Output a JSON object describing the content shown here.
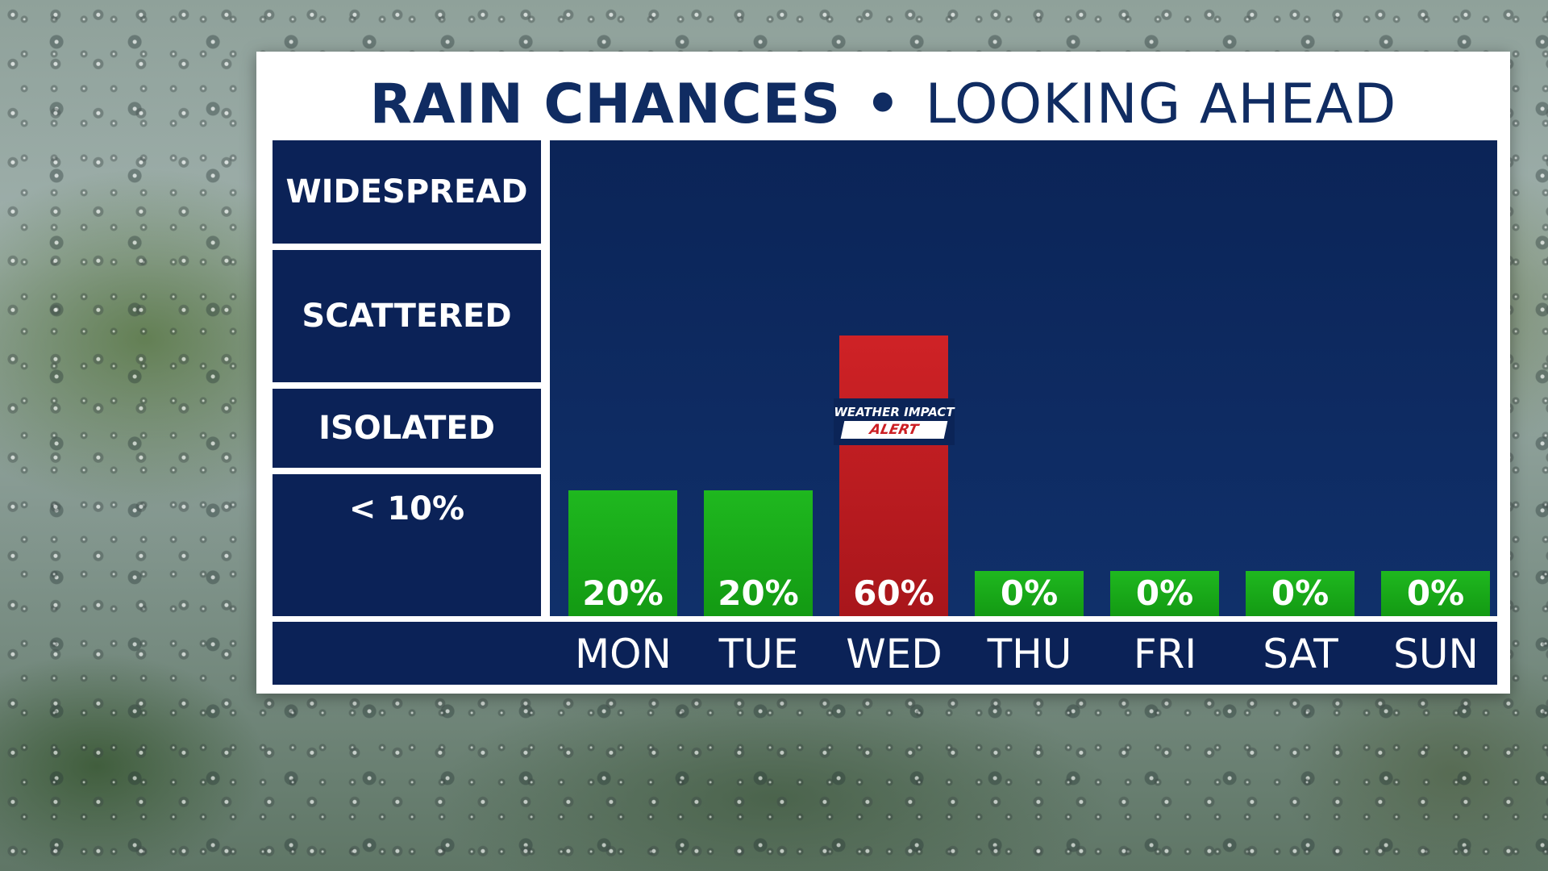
{
  "title": {
    "bold": "RAIN CHANCES",
    "separator": "•",
    "light": "LOOKING AHEAD"
  },
  "colors": {
    "panel_bg": "#ffffff",
    "dark_navy": "#0b2257",
    "title_navy": "#102c62",
    "green_bar": "#1fb81f",
    "red_bar": "#cf2226"
  },
  "chart_data": {
    "type": "bar",
    "categories": [
      "MON",
      "TUE",
      "WED",
      "THU",
      "FRI",
      "SAT",
      "SUN"
    ],
    "values": [
      20,
      20,
      60,
      0,
      0,
      0,
      0
    ],
    "value_labels": [
      "20%",
      "20%",
      "60%",
      "0%",
      "0%",
      "0%",
      "0%"
    ],
    "bar_colors": [
      "#1fb81f",
      "#1fb81f",
      "#cf2226",
      "#1fb81f",
      "#1fb81f",
      "#1fb81f",
      "#1fb81f"
    ],
    "y_categories": [
      "WIDESPREAD",
      "SCATTERED",
      "ISOLATED",
      "< 10%"
    ],
    "ylim": [
      0,
      100
    ],
    "grid": false,
    "annotations": [
      {
        "category": "WED",
        "lines": [
          "WEATHER IMPACT",
          "ALERT"
        ]
      }
    ]
  }
}
